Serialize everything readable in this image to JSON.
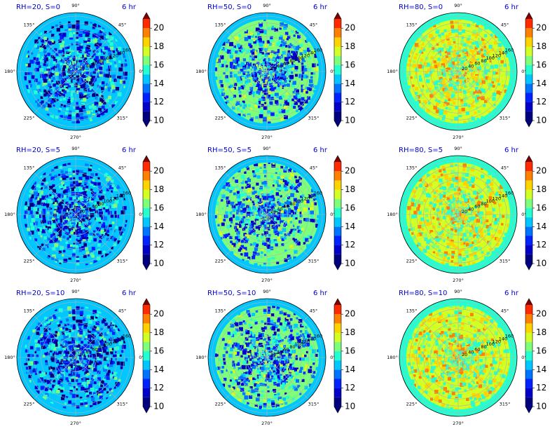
{
  "figure": {
    "time_label": "6 hr",
    "angle_labels": [
      "0°",
      "45°",
      "90°",
      "135°",
      "180°",
      "225°",
      "270°",
      "315°"
    ],
    "angle_values": [
      0,
      45,
      90,
      135,
      180,
      225,
      270,
      315
    ],
    "radial_labels": [
      "20",
      "40",
      "60",
      "80",
      "100",
      "120",
      "140",
      "160"
    ],
    "radial_values": [
      20,
      40,
      60,
      80,
      100,
      120,
      140,
      160
    ],
    "radial_label_angle_deg": 22.5,
    "r_max": 170,
    "colorbar": {
      "levels": [
        10,
        11,
        12,
        13,
        14,
        15,
        16,
        17,
        18,
        19,
        20,
        21
      ],
      "tick_labels": [
        "10",
        "12",
        "14",
        "16",
        "18",
        "20"
      ],
      "tick_values": [
        10,
        12,
        14,
        16,
        18,
        20
      ],
      "extend": "both",
      "colors": [
        "#00007f",
        "#0000c8",
        "#0022ff",
        "#0073ff",
        "#00c7ff",
        "#24ffd2",
        "#7dff7a",
        "#d2ff24",
        "#ffd300",
        "#ff7f00",
        "#ff2a00",
        "#c80000"
      ],
      "under_color": "#00007f",
      "over_color": "#7f0000"
    },
    "outer_ring_colors": {
      "rh20": "#24ffd2",
      "rh50": "#24ffd2",
      "rh80": "#7dff7a"
    }
  },
  "chart_data": [
    {
      "type": "heatmap",
      "projection": "polar",
      "title": "RH=20, S=0",
      "rh": 20,
      "s": 0,
      "time": "6 hr",
      "colorbar_range": [
        10,
        21
      ],
      "typical_range": [
        10,
        16.5
      ],
      "background_value": 14.5,
      "outer_ring_value": 14.5
    },
    {
      "type": "heatmap",
      "projection": "polar",
      "title": "RH=50, S=0",
      "rh": 50,
      "s": 0,
      "time": "6 hr",
      "colorbar_range": [
        10,
        21
      ],
      "typical_range": [
        11,
        17.5
      ],
      "background_value": 16.5,
      "outer_ring_value": 14.5
    },
    {
      "type": "heatmap",
      "projection": "polar",
      "title": "RH=80, S=0",
      "rh": 80,
      "s": 0,
      "time": "6 hr",
      "colorbar_range": [
        10,
        21
      ],
      "typical_range": [
        15,
        19.5
      ],
      "background_value": 17.5,
      "outer_ring_value": 15.5
    },
    {
      "type": "heatmap",
      "projection": "polar",
      "title": "RH=20, S=5",
      "rh": 20,
      "s": 5,
      "time": "6 hr",
      "colorbar_range": [
        10,
        21
      ],
      "typical_range": [
        10,
        16.5
      ],
      "background_value": 14.5,
      "outer_ring_value": 14.5
    },
    {
      "type": "heatmap",
      "projection": "polar",
      "title": "RH=50, S=5",
      "rh": 50,
      "s": 5,
      "time": "6 hr",
      "colorbar_range": [
        10,
        21
      ],
      "typical_range": [
        11,
        17.5
      ],
      "background_value": 16.5,
      "outer_ring_value": 14.5
    },
    {
      "type": "heatmap",
      "projection": "polar",
      "title": "RH=80, S=5",
      "rh": 80,
      "s": 5,
      "time": "6 hr",
      "colorbar_range": [
        10,
        21
      ],
      "typical_range": [
        15,
        19.5
      ],
      "background_value": 17.5,
      "outer_ring_value": 15.5
    },
    {
      "type": "heatmap",
      "projection": "polar",
      "title": "RH=20, S=10",
      "rh": 20,
      "s": 10,
      "time": "6 hr",
      "colorbar_range": [
        10,
        21
      ],
      "typical_range": [
        10,
        16.5
      ],
      "background_value": 14.5,
      "outer_ring_value": 14.5
    },
    {
      "type": "heatmap",
      "projection": "polar",
      "title": "RH=50, S=10",
      "rh": 50,
      "s": 10,
      "time": "6 hr",
      "colorbar_range": [
        10,
        21
      ],
      "typical_range": [
        11,
        17.5
      ],
      "background_value": 16.5,
      "outer_ring_value": 14.5
    },
    {
      "type": "heatmap",
      "projection": "polar",
      "title": "RH=80, S=10",
      "rh": 80,
      "s": 10,
      "time": "6 hr",
      "colorbar_range": [
        10,
        21
      ],
      "typical_range": [
        15,
        19.5
      ],
      "background_value": 17.5,
      "outer_ring_value": 15.5
    }
  ]
}
